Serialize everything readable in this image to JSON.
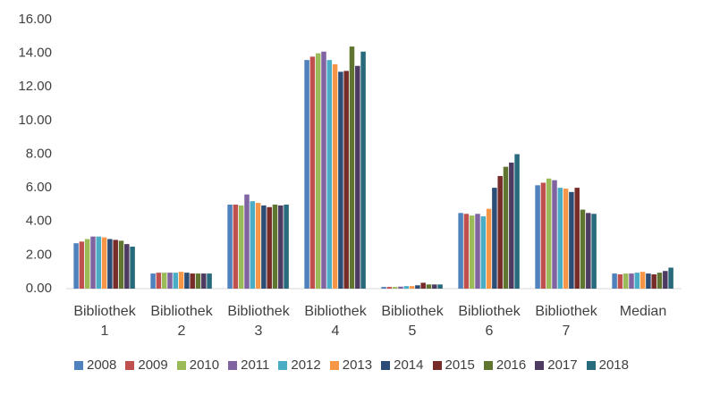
{
  "chart_data": {
    "type": "bar",
    "categories": [
      "Bibliothek 1",
      "Bibliothek 2",
      "Bibliothek 3",
      "Bibliothek 4",
      "Bibliothek 5",
      "Bibliothek 6",
      "Bibliothek 7",
      "Median"
    ],
    "series": [
      {
        "name": "2008",
        "color": "#4f81bd",
        "values": [
          2.7,
          0.9,
          5.0,
          13.6,
          0.1,
          4.5,
          6.15,
          0.9
        ]
      },
      {
        "name": "2009",
        "color": "#c0504d",
        "values": [
          2.8,
          0.95,
          5.0,
          13.8,
          0.1,
          4.45,
          6.3,
          0.85
        ]
      },
      {
        "name": "2010",
        "color": "#9bbb59",
        "values": [
          2.95,
          0.95,
          4.95,
          14.0,
          0.1,
          4.35,
          6.55,
          0.9
        ]
      },
      {
        "name": "2011",
        "color": "#8064a2",
        "values": [
          3.1,
          0.95,
          5.6,
          14.1,
          0.12,
          4.45,
          6.45,
          0.9
        ]
      },
      {
        "name": "2012",
        "color": "#4bacc6",
        "values": [
          3.1,
          0.95,
          5.2,
          13.6,
          0.15,
          4.3,
          6.0,
          0.95
        ]
      },
      {
        "name": "2013",
        "color": "#f79646",
        "values": [
          3.05,
          1.0,
          5.1,
          13.35,
          0.15,
          4.75,
          5.95,
          1.0
        ]
      },
      {
        "name": "2014",
        "color": "#2c4d75",
        "values": [
          2.95,
          0.95,
          4.95,
          12.9,
          0.2,
          6.0,
          5.75,
          0.9
        ]
      },
      {
        "name": "2015",
        "color": "#772c2a",
        "values": [
          2.9,
          0.9,
          4.85,
          12.95,
          0.35,
          6.7,
          6.0,
          0.85
        ]
      },
      {
        "name": "2016",
        "color": "#5f7530",
        "values": [
          2.85,
          0.9,
          5.0,
          14.4,
          0.25,
          7.25,
          4.7,
          0.95
        ]
      },
      {
        "name": "2017",
        "color": "#4d3b62",
        "values": [
          2.65,
          0.9,
          4.95,
          13.25,
          0.25,
          7.5,
          4.5,
          1.05
        ]
      },
      {
        "name": "2018",
        "color": "#276a7c",
        "values": [
          2.5,
          0.9,
          5.0,
          14.1,
          0.25,
          8.0,
          4.45,
          1.25
        ]
      }
    ],
    "ylim": [
      0,
      16
    ],
    "yticks": [
      {
        "value": 0,
        "label": "0.00"
      },
      {
        "value": 2,
        "label": "2.00"
      },
      {
        "value": 4,
        "label": "4.00"
      },
      {
        "value": 6,
        "label": "6.00"
      },
      {
        "value": 8,
        "label": "8.00"
      },
      {
        "value": 10,
        "label": "10.00"
      },
      {
        "value": 12,
        "label": "12.00"
      },
      {
        "value": 14,
        "label": "14.00"
      },
      {
        "value": 16,
        "label": "16.00"
      }
    ],
    "grid": false,
    "legend": "bottom"
  }
}
